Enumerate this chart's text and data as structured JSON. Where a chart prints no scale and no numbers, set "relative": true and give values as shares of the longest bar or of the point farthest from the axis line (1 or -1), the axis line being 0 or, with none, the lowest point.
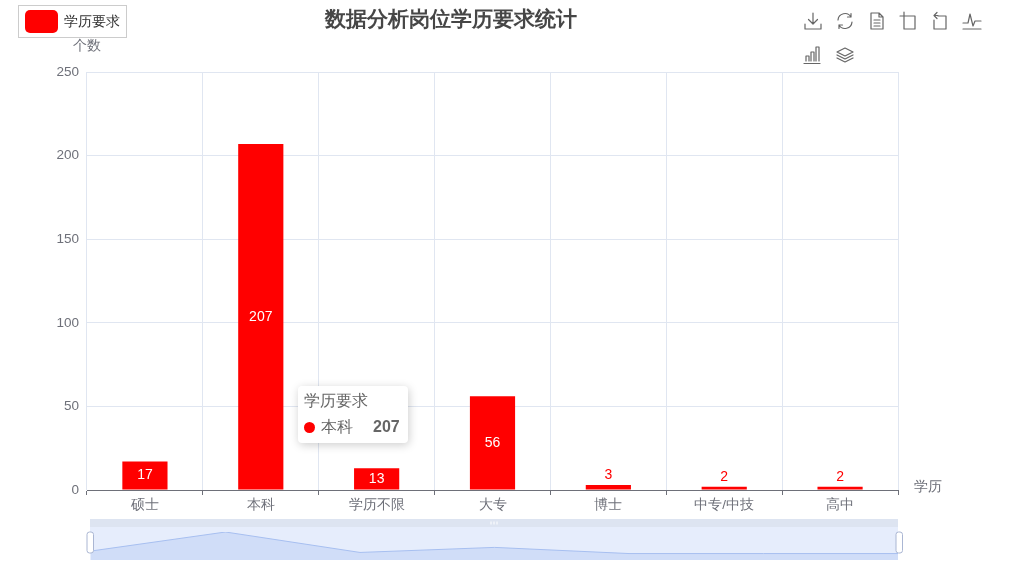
{
  "chart_data": [
    {
      "type": "bar",
      "title": "数据分析岗位学历要求统计",
      "xlabel": "学历",
      "ylabel": "个数",
      "categories": [
        "硕士",
        "本科",
        "学历不限",
        "大专",
        "博士",
        "中专/中技",
        "高中"
      ],
      "series": [
        {
          "name": "学历要求",
          "color": "#ff0000",
          "values": [
            17,
            207,
            13,
            56,
            3,
            2,
            2
          ]
        }
      ],
      "ylim": [
        0,
        250
      ],
      "yticks": [
        0,
        50,
        100,
        150,
        200,
        250
      ],
      "grid": true,
      "legend": "top left",
      "data_labels": true,
      "annotations": [
        "学历要求",
        "本科",
        "207"
      ]
    },
    {
      "type": "area",
      "categories": [
        null,
        null,
        null,
        null,
        null,
        null,
        null
      ],
      "relative": true,
      "values": [
        0.32,
        1,
        0.27,
        0.45,
        0.23,
        0.23,
        0.23
      ],
      "color": "#a7bff0"
    }
  ]
}
